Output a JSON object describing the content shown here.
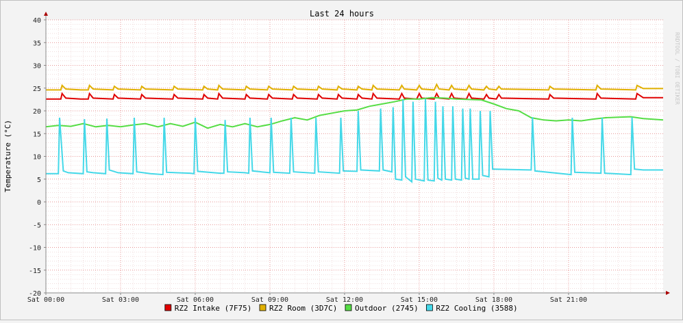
{
  "chart_data": {
    "type": "line",
    "title": "Last 24 hours",
    "ylabel": "Temperature (°C)",
    "xlabel": "",
    "watermark": "RRDTOOL / TOBI OETIKER",
    "ylim": [
      -20,
      40
    ],
    "xlim": [
      0,
      24.8
    ],
    "grid": true,
    "legend_position": "bottom",
    "y_ticks": [
      -20,
      -15,
      -10,
      -5,
      0,
      5,
      10,
      15,
      20,
      25,
      30,
      35,
      40
    ],
    "x_ticks": [
      {
        "x": 0,
        "label": "Sat 00:00"
      },
      {
        "x": 3,
        "label": "Sat 03:00"
      },
      {
        "x": 6,
        "label": "Sat 06:00"
      },
      {
        "x": 9,
        "label": "Sat 09:00"
      },
      {
        "x": 12,
        "label": "Sat 12:00"
      },
      {
        "x": 15,
        "label": "Sat 15:00"
      },
      {
        "x": 18,
        "label": "Sat 18:00"
      },
      {
        "x": 21,
        "label": "Sat 21:00"
      }
    ],
    "colors": {
      "background": "#f3f3f3",
      "canvas": "#ffffff",
      "grid_minor": "#e8c8c8",
      "grid_major": "#e07070",
      "axis": "#888888",
      "arrow": "#aa0000"
    },
    "series": [
      {
        "name": "RZ2 Intake (7F75)",
        "color": "#e00000",
        "x": [
          0,
          0.6,
          0.65,
          0.8,
          1.4,
          1.7,
          1.75,
          1.9,
          2.7,
          2.75,
          2.9,
          3.8,
          3.85,
          4.0,
          5.1,
          5.15,
          5.3,
          6.3,
          6.35,
          6.5,
          6.9,
          6.95,
          7.1,
          8.0,
          8.05,
          8.2,
          8.9,
          8.95,
          9.1,
          9.9,
          9.95,
          10.1,
          10.9,
          10.95,
          11.1,
          11.7,
          11.75,
          11.9,
          12.5,
          12.55,
          12.7,
          13.1,
          13.15,
          13.3,
          14.2,
          14.3,
          14.4,
          14.9,
          15.0,
          15.1,
          15.6,
          15.7,
          15.8,
          16.2,
          16.3,
          16.4,
          16.9,
          17.0,
          17.1,
          17.6,
          17.7,
          17.8,
          18.1,
          18.2,
          18.3,
          20.2,
          20.25,
          20.4,
          22.1,
          22.15,
          22.3,
          23.7,
          23.75,
          24.0,
          24.8
        ],
        "values": [
          22.6,
          22.6,
          23.8,
          22.8,
          22.6,
          22.6,
          23.8,
          22.8,
          22.6,
          23.6,
          22.8,
          22.6,
          23.6,
          22.8,
          22.6,
          23.6,
          22.8,
          22.6,
          23.6,
          22.8,
          22.6,
          23.8,
          22.8,
          22.6,
          23.6,
          22.8,
          22.6,
          23.6,
          22.8,
          22.6,
          23.6,
          22.8,
          22.6,
          23.6,
          22.8,
          22.6,
          23.6,
          22.8,
          22.6,
          23.6,
          22.8,
          22.6,
          23.8,
          22.8,
          22.6,
          23.8,
          22.8,
          22.6,
          23.8,
          22.8,
          22.6,
          23.8,
          22.8,
          22.6,
          23.8,
          22.8,
          22.6,
          23.8,
          22.8,
          22.6,
          23.6,
          22.8,
          22.6,
          23.6,
          22.8,
          22.6,
          23.6,
          22.8,
          22.6,
          23.8,
          22.8,
          22.6,
          23.8,
          22.9,
          22.9
        ]
      },
      {
        "name": "RZ2 Room (3D7C)",
        "color": "#e0b000",
        "x": [
          0,
          0.6,
          0.65,
          0.8,
          1.4,
          1.7,
          1.75,
          1.9,
          2.7,
          2.75,
          2.9,
          3.8,
          3.85,
          4.0,
          5.1,
          5.15,
          5.3,
          6.3,
          6.35,
          6.5,
          6.9,
          6.95,
          7.1,
          8.0,
          8.05,
          8.2,
          8.9,
          8.95,
          9.1,
          9.9,
          9.95,
          10.1,
          10.9,
          10.95,
          11.1,
          11.7,
          11.75,
          11.9,
          12.5,
          12.55,
          12.7,
          13.1,
          13.15,
          13.3,
          14.2,
          14.3,
          14.4,
          14.9,
          15.0,
          15.1,
          15.6,
          15.7,
          15.8,
          16.2,
          16.3,
          16.4,
          16.9,
          17.0,
          17.1,
          17.6,
          17.7,
          17.8,
          18.1,
          18.2,
          18.3,
          20.2,
          20.25,
          20.4,
          22.1,
          22.15,
          22.3,
          23.7,
          23.75,
          24.0,
          24.8
        ],
        "values": [
          24.6,
          24.6,
          25.6,
          24.8,
          24.6,
          24.6,
          25.6,
          24.8,
          24.6,
          25.4,
          24.8,
          24.6,
          25.4,
          24.8,
          24.6,
          25.4,
          24.8,
          24.6,
          25.4,
          24.8,
          24.6,
          25.6,
          24.8,
          24.6,
          25.4,
          24.8,
          24.6,
          25.4,
          24.8,
          24.6,
          25.4,
          24.8,
          24.6,
          25.4,
          24.8,
          24.6,
          25.4,
          24.8,
          24.6,
          25.4,
          24.8,
          24.6,
          25.6,
          24.8,
          24.6,
          25.6,
          24.8,
          24.6,
          25.6,
          24.8,
          24.6,
          25.8,
          24.8,
          24.6,
          25.6,
          24.8,
          24.6,
          25.6,
          24.8,
          24.6,
          25.4,
          24.8,
          24.6,
          25.4,
          24.8,
          24.6,
          25.4,
          24.8,
          24.6,
          25.6,
          24.8,
          24.6,
          25.6,
          24.9,
          24.9
        ]
      },
      {
        "name": "Outdoor (2745)",
        "color": "#55dd44",
        "x": [
          0,
          0.5,
          1.0,
          1.5,
          2.0,
          2.5,
          3.0,
          3.5,
          4.0,
          4.5,
          5.0,
          5.5,
          6.0,
          6.5,
          7.0,
          7.5,
          8.0,
          8.5,
          9.0,
          9.5,
          10.0,
          10.5,
          11.0,
          11.5,
          12.0,
          12.5,
          13.0,
          13.5,
          14.0,
          14.5,
          15.0,
          15.5,
          16.0,
          16.5,
          17.0,
          17.5,
          18.0,
          18.5,
          19.0,
          19.5,
          20.0,
          20.5,
          21.0,
          21.5,
          22.0,
          22.5,
          23.0,
          23.5,
          24.0,
          24.8
        ],
        "values": [
          16.5,
          16.8,
          16.6,
          17.2,
          16.5,
          16.8,
          16.5,
          16.9,
          17.2,
          16.5,
          17.2,
          16.6,
          17.5,
          16.2,
          17.0,
          16.5,
          17.2,
          16.5,
          17.0,
          17.8,
          18.5,
          18.0,
          19.0,
          19.5,
          20.0,
          20.2,
          21.0,
          21.5,
          22.0,
          22.6,
          22.6,
          22.9,
          22.8,
          22.6,
          22.5,
          22.4,
          21.5,
          20.5,
          20.0,
          18.5,
          18.0,
          17.8,
          18.0,
          17.8,
          18.2,
          18.5,
          18.6,
          18.7,
          18.3,
          18.0
        ]
      },
      {
        "name": "RZ2 Cooling (3588)",
        "color": "#44d8e8",
        "x": [
          0,
          0.5,
          0.55,
          0.7,
          0.9,
          1.5,
          1.55,
          1.65,
          1.9,
          2.4,
          2.45,
          2.55,
          2.9,
          3.5,
          3.55,
          3.65,
          4.2,
          4.7,
          4.75,
          4.85,
          5.8,
          5.95,
          6.0,
          6.1,
          7.0,
          7.15,
          7.2,
          7.3,
          8.0,
          8.15,
          8.2,
          8.3,
          9.0,
          9.05,
          9.15,
          9.8,
          9.85,
          9.95,
          10.8,
          10.85,
          10.95,
          11.8,
          11.85,
          11.95,
          12.5,
          12.55,
          12.65,
          13.4,
          13.45,
          13.55,
          13.9,
          13.95,
          14.05,
          14.3,
          14.35,
          14.45,
          14.7,
          14.75,
          14.85,
          15.2,
          15.25,
          15.35,
          15.6,
          15.65,
          15.75,
          15.9,
          15.95,
          16.05,
          16.3,
          16.35,
          16.45,
          16.7,
          16.75,
          16.85,
          17.0,
          17.05,
          17.15,
          17.4,
          17.45,
          17.55,
          17.8,
          17.85,
          17.95,
          19.5,
          19.55,
          19.65,
          21.1,
          21.15,
          21.25,
          22.3,
          22.35,
          22.45,
          23.5,
          23.55,
          23.65,
          24.0,
          24.8
        ],
        "values": [
          6.2,
          6.2,
          18.5,
          6.8,
          6.4,
          6.2,
          18.2,
          6.6,
          6.4,
          6.2,
          18.3,
          7.0,
          6.4,
          6.2,
          18.5,
          6.6,
          6.2,
          6.0,
          18.5,
          6.5,
          6.3,
          6.2,
          18.5,
          6.7,
          6.3,
          6.3,
          18.0,
          6.6,
          6.4,
          6.3,
          18.5,
          6.8,
          6.4,
          18.5,
          6.5,
          6.3,
          18.5,
          6.6,
          6.3,
          18.5,
          6.6,
          6.3,
          18.5,
          6.8,
          6.7,
          20.0,
          7.0,
          6.8,
          20.5,
          7.0,
          6.6,
          20.8,
          5.0,
          4.8,
          22.5,
          5.5,
          4.4,
          22.0,
          5.0,
          4.6,
          22.6,
          4.8,
          4.6,
          22.0,
          5.2,
          4.8,
          21.0,
          5.0,
          4.8,
          21.0,
          5.0,
          4.8,
          20.5,
          5.2,
          5.0,
          20.5,
          5.0,
          5.0,
          20.0,
          5.8,
          5.5,
          20.0,
          7.2,
          7.0,
          18.6,
          6.8,
          6.0,
          18.5,
          6.5,
          6.3,
          18.5,
          6.3,
          6.0,
          18.6,
          7.2,
          7.0,
          7.0
        ]
      }
    ]
  }
}
